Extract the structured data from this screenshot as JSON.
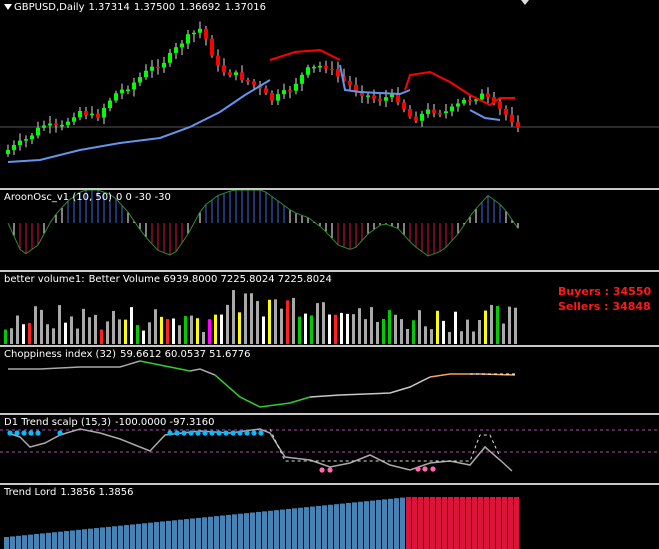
{
  "main_chart": {
    "symbol": "GBPUSD,Daily",
    "open": "1.37314",
    "high": "1.37500",
    "low": "1.36692",
    "close": "1.37016"
  },
  "aroon": {
    "name": "AroonOsc_v1 (10, 50)",
    "values": "0 0 -30 -30"
  },
  "better_volume": {
    "name": "better volume1:",
    "values": "Better Volume 6939.8000 7225.8024 7225.8024",
    "buyers_label": "Buyers : 34550",
    "sellers_label": "Sellers : 34848"
  },
  "choppiness": {
    "name": "Choppiness index (32)",
    "values": "59.6612 60.0537 51.6776"
  },
  "trend_scalp": {
    "name": "D1 Trend scalp (15,3)",
    "values": "-100.0000 -97.3160"
  },
  "trend_lord": {
    "name": "Trend Lord",
    "values": "1.3856 1.3856"
  },
  "colors": {
    "background": "#000000",
    "bull_candle": "#00ff00",
    "bear_candle": "#ff0000",
    "support_line": "#6495ed",
    "resistance_line": "#ff0000",
    "buyers_sellers": "#ff1a1a",
    "trend_lord_up": "#4682b4",
    "trend_lord_down": "#dc143c",
    "scalp_dots_up": "#00bfff",
    "scalp_dots_down": "#ff69b4"
  }
}
